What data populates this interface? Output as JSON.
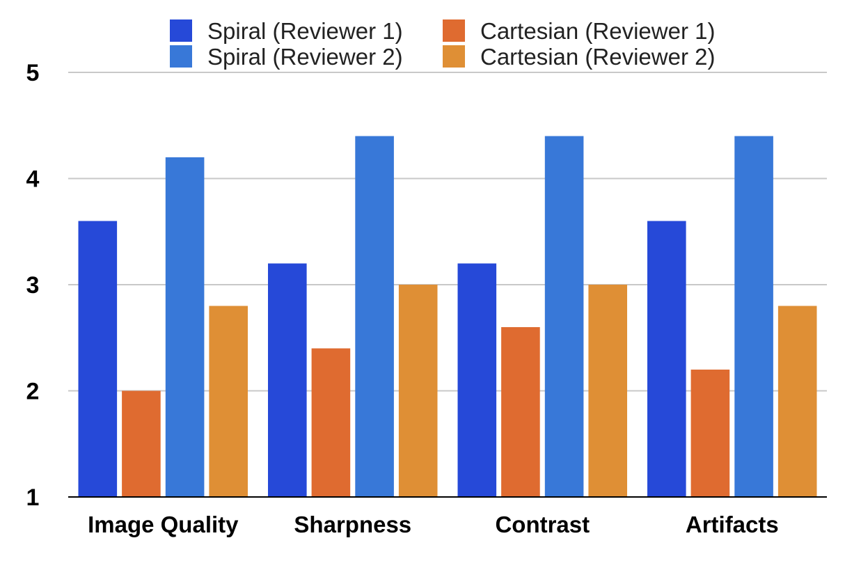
{
  "chart_data": {
    "type": "bar",
    "title": "",
    "xlabel": "",
    "ylabel": "",
    "ylim": [
      1,
      5
    ],
    "yticks": [
      "1",
      "2",
      "3",
      "4",
      "5"
    ],
    "grid": true,
    "legend_position": "top",
    "categories": [
      "Image Quality",
      "Sharpness",
      "Contrast",
      "Artifacts"
    ],
    "series": [
      {
        "name": "Spiral (Reviewer 1)",
        "color": "#2649d8",
        "values": [
          3.6,
          3.2,
          3.2,
          3.6
        ]
      },
      {
        "name": "Cartesian (Reviewer 1)",
        "color": "#df6b30",
        "values": [
          2.0,
          2.4,
          2.6,
          2.2
        ]
      },
      {
        "name": "Spiral (Reviewer 2)",
        "color": "#3878d8",
        "values": [
          4.2,
          4.4,
          4.4,
          4.4
        ]
      },
      {
        "name": "Cartesian (Reviewer 2)",
        "color": "#df8f35",
        "values": [
          2.8,
          3.0,
          3.0,
          2.8
        ]
      }
    ]
  }
}
